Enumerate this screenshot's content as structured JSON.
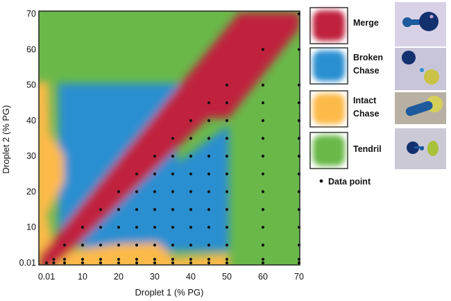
{
  "chart_data": {
    "type": "heatmap",
    "title": "",
    "xlabel": "Droplet 1 (% PG)",
    "ylabel": "Droplet 2 (% PG)",
    "x_ticks": [
      "0.01",
      "10",
      "20",
      "30",
      "40",
      "50",
      "60",
      "70"
    ],
    "x_tick_values": [
      0,
      10,
      20,
      30,
      40,
      50,
      60,
      70
    ],
    "y_ticks": [
      "0.01",
      "10",
      "20",
      "30",
      "40",
      "50",
      "60",
      "70"
    ],
    "y_tick_values": [
      0,
      10,
      20,
      30,
      40,
      50,
      60,
      70
    ],
    "xlim": [
      0,
      70
    ],
    "ylim": [
      0,
      70
    ],
    "grid": false,
    "legend_placement": "right",
    "categories": [
      {
        "label": "Merge",
        "color": "#c0223e"
      },
      {
        "label": "Broken\nChase",
        "color": "#2a8fd0"
      },
      {
        "label": "Intact\nChase",
        "color": "#fcba4a"
      },
      {
        "label": "Tendril",
        "color": "#6ab84a"
      }
    ],
    "data_point_label": "Data point",
    "data_points": [
      [
        0,
        0
      ],
      [
        2,
        0
      ],
      [
        2,
        1
      ],
      [
        5,
        0
      ],
      [
        5,
        1
      ],
      [
        5,
        5
      ],
      [
        10,
        0
      ],
      [
        10,
        1
      ],
      [
        10,
        5
      ],
      [
        10,
        10
      ],
      [
        15,
        0
      ],
      [
        15,
        1
      ],
      [
        15,
        5
      ],
      [
        15,
        10
      ],
      [
        15,
        15
      ],
      [
        20,
        0
      ],
      [
        20,
        1
      ],
      [
        20,
        5
      ],
      [
        20,
        10
      ],
      [
        20,
        15
      ],
      [
        20,
        20
      ],
      [
        25,
        0
      ],
      [
        25,
        1
      ],
      [
        25,
        5
      ],
      [
        25,
        10
      ],
      [
        25,
        15
      ],
      [
        25,
        20
      ],
      [
        25,
        25
      ],
      [
        30,
        0
      ],
      [
        30,
        1
      ],
      [
        30,
        5
      ],
      [
        30,
        10
      ],
      [
        30,
        15
      ],
      [
        30,
        20
      ],
      [
        30,
        25
      ],
      [
        30,
        30
      ],
      [
        35,
        0
      ],
      [
        35,
        1
      ],
      [
        35,
        5
      ],
      [
        35,
        10
      ],
      [
        35,
        15
      ],
      [
        35,
        20
      ],
      [
        35,
        25
      ],
      [
        35,
        30
      ],
      [
        35,
        35
      ],
      [
        40,
        0
      ],
      [
        40,
        1
      ],
      [
        40,
        5
      ],
      [
        40,
        10
      ],
      [
        40,
        15
      ],
      [
        40,
        20
      ],
      [
        40,
        25
      ],
      [
        40,
        30
      ],
      [
        40,
        35
      ],
      [
        40,
        40
      ],
      [
        45,
        0
      ],
      [
        45,
        1
      ],
      [
        45,
        5
      ],
      [
        45,
        10
      ],
      [
        45,
        15
      ],
      [
        45,
        20
      ],
      [
        45,
        25
      ],
      [
        45,
        30
      ],
      [
        45,
        35
      ],
      [
        45,
        40
      ],
      [
        45,
        45
      ],
      [
        50,
        0
      ],
      [
        50,
        1
      ],
      [
        50,
        5
      ],
      [
        50,
        10
      ],
      [
        50,
        15
      ],
      [
        50,
        20
      ],
      [
        50,
        25
      ],
      [
        50,
        30
      ],
      [
        50,
        35
      ],
      [
        50,
        40
      ],
      [
        50,
        45
      ],
      [
        50,
        50
      ],
      [
        60,
        0
      ],
      [
        60,
        1
      ],
      [
        60,
        5
      ],
      [
        60,
        10
      ],
      [
        60,
        15
      ],
      [
        60,
        20
      ],
      [
        60,
        25
      ],
      [
        60,
        30
      ],
      [
        60,
        35
      ],
      [
        60,
        40
      ],
      [
        60,
        45
      ],
      [
        60,
        50
      ],
      [
        60,
        60
      ],
      [
        70,
        0
      ],
      [
        70,
        1
      ],
      [
        70,
        5
      ],
      [
        70,
        10
      ],
      [
        70,
        15
      ],
      [
        70,
        20
      ],
      [
        70,
        25
      ],
      [
        70,
        30
      ],
      [
        70,
        35
      ],
      [
        70,
        40
      ],
      [
        70,
        45
      ],
      [
        70,
        50
      ],
      [
        70,
        60
      ],
      [
        70,
        70
      ]
    ],
    "regions": [
      {
        "label": "Tendril",
        "description": "top band (y above ~50, x below diagonal) and right band (x above ~52)"
      },
      {
        "label": "Merge",
        "description": "diagonal band from (0,0) to (70,70)"
      },
      {
        "label": "Broken Chase",
        "description": "upper-left block x 5-35, y 15-50 and lower block x 15-50, y 5-35"
      },
      {
        "label": "Intact Chase",
        "description": "left strip x 0-6, y 5-50 and bottom strip y 0-5, x 5-50"
      }
    ]
  }
}
